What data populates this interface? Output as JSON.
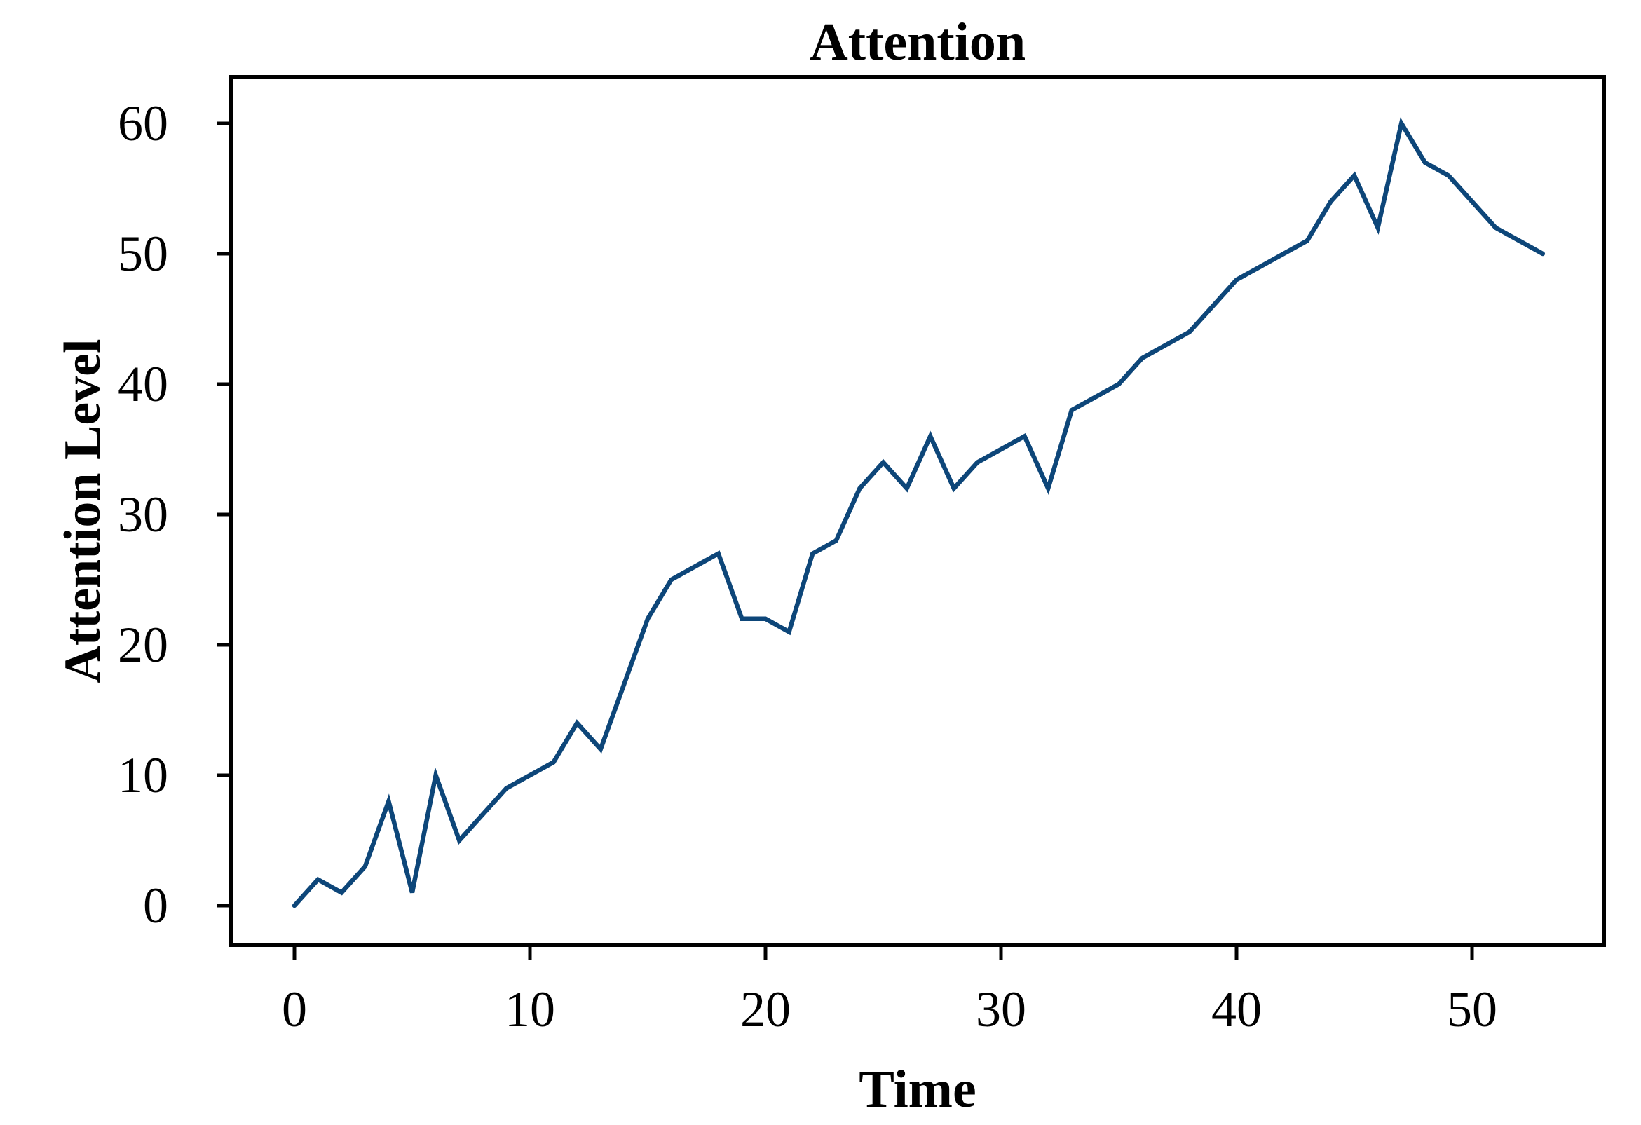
{
  "title": "Attention",
  "y_axis": {
    "label": "Attention Level",
    "ticks": [
      60,
      50,
      40,
      30,
      20,
      10,
      0
    ]
  },
  "x_axis": {
    "label": "Time",
    "ticks": [
      0,
      10,
      20,
      30,
      40,
      50
    ]
  },
  "colors": {
    "line": "#0d4679",
    "axis": "#000000",
    "background": "#ffffff"
  },
  "chart_data": {
    "type": "line",
    "title": "Attention",
    "xlabel": "Time",
    "ylabel": "Attention Level",
    "x": [
      0,
      1,
      2,
      3,
      4,
      5,
      6,
      7,
      8,
      9,
      10,
      11,
      12,
      13,
      14,
      15,
      16,
      17,
      18,
      19,
      20,
      21,
      22,
      23,
      24,
      25,
      26,
      27,
      28,
      29,
      30,
      31,
      32,
      33,
      34,
      35,
      36,
      37,
      38,
      39,
      40,
      41,
      42,
      43,
      44,
      45,
      46,
      47,
      48,
      49,
      50,
      51,
      52,
      53
    ],
    "values": [
      0,
      2,
      1,
      3,
      8,
      1,
      10,
      5,
      7,
      9,
      10,
      11,
      14,
      12,
      17,
      22,
      25,
      26,
      27,
      22,
      22,
      21,
      27,
      28,
      32,
      34,
      32,
      36,
      32,
      34,
      35,
      36,
      32,
      38,
      39,
      40,
      42,
      43,
      44,
      46,
      48,
      49,
      50,
      51,
      54,
      56,
      52,
      60,
      57,
      56,
      54,
      52,
      51,
      50
    ],
    "xlim": [
      -2.7,
      55.6
    ],
    "ylim": [
      -3.0,
      63.5
    ],
    "x_tick_values": [
      0,
      10,
      20,
      30,
      40,
      50
    ],
    "y_tick_values": [
      0,
      10,
      20,
      30,
      40,
      50,
      60
    ],
    "grid": false,
    "legend": "none",
    "line_color": "#0d4679"
  }
}
